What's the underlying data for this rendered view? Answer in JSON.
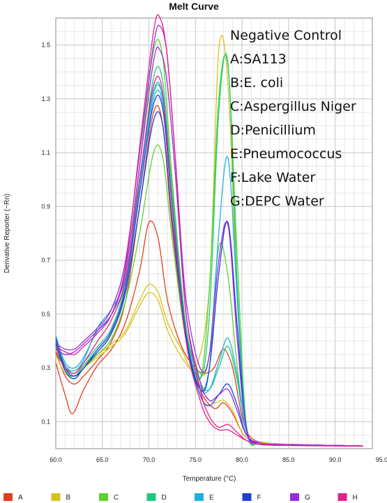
{
  "chart_data": {
    "type": "line",
    "title": "Melt Curve",
    "xlabel": "Temperature (°C)",
    "ylabel": "Derivative Reporter (−Rn)",
    "xlim": [
      60.0,
      94.0
    ],
    "ylim": [
      0.0,
      1.6
    ],
    "xticks": [
      "60.0",
      "65.0",
      "70.0",
      "75.0",
      "80.0",
      "85.0",
      "90.0",
      "95.0"
    ],
    "yticks": [
      "0.1",
      "0.3",
      "0.5",
      "0.7",
      "0.9",
      "1.1",
      "1.3",
      "1.5"
    ],
    "grid": true,
    "annotations": [
      "Negative Control",
      "A:SA113",
      "B:E. coli",
      "C:Aspergillus Niger",
      "D:Penicillium",
      "E:Pneumococcus",
      "F:Lake Water",
      "G:DEPC Water"
    ],
    "legend_position": "bottom",
    "series": [
      {
        "name": "A",
        "color": "#e0401c",
        "curves": [
          {
            "x": [
              60,
              61,
              61.8,
              63,
              64.5,
              66,
              67.5,
              69,
              70,
              71,
              72,
              73.5,
              75,
              76,
              77,
              78,
              79,
              80,
              81,
              83,
              86,
              90,
              93
            ],
            "y": [
              0.32,
              0.2,
              0.13,
              0.22,
              0.31,
              0.37,
              0.47,
              0.66,
              0.84,
              0.78,
              0.55,
              0.38,
              0.3,
              0.28,
              0.3,
              0.37,
              0.3,
              0.12,
              0.04,
              0.02,
              0.015,
              0.012,
              0.01
            ]
          },
          {
            "x": [
              60,
              61,
              62,
              63,
              64.5,
              66,
              67.5,
              69,
              70.5,
              71.5,
              72.5,
              74,
              75.5,
              77,
              78,
              79,
              80,
              81,
              83,
              86,
              90,
              93
            ],
            "y": [
              0.36,
              0.27,
              0.24,
              0.27,
              0.33,
              0.4,
              0.55,
              0.9,
              1.25,
              1.2,
              0.82,
              0.42,
              0.22,
              0.15,
              0.17,
              0.13,
              0.06,
              0.03,
              0.02,
              0.015,
              0.012,
              0.01
            ]
          }
        ]
      },
      {
        "name": "B",
        "color": "#d8c21a",
        "curves": [
          {
            "x": [
              60,
              61,
              62,
              63,
              64.5,
              66,
              67.5,
              69,
              70,
              71,
              72,
              73.5,
              75,
              76.5,
              77.5,
              78.5,
              79.5,
              80.5,
              82,
              85,
              90,
              93
            ],
            "y": [
              0.37,
              0.3,
              0.28,
              0.31,
              0.35,
              0.39,
              0.44,
              0.55,
              0.61,
              0.58,
              0.47,
              0.37,
              0.3,
              0.6,
              1.48,
              1.35,
              0.55,
              0.08,
              0.02,
              0.015,
              0.012,
              0.01
            ]
          },
          {
            "x": [
              60,
              61,
              62,
              63,
              64.5,
              66,
              67.5,
              69,
              70,
              71,
              72,
              73.5,
              75,
              76,
              77,
              78,
              79,
              80,
              81,
              83,
              86,
              90,
              93
            ],
            "y": [
              0.35,
              0.28,
              0.27,
              0.3,
              0.34,
              0.38,
              0.43,
              0.53,
              0.58,
              0.55,
              0.44,
              0.34,
              0.27,
              0.2,
              0.17,
              0.18,
              0.14,
              0.06,
              0.03,
              0.02,
              0.015,
              0.012,
              0.01
            ]
          }
        ]
      },
      {
        "name": "C",
        "color": "#5ad42a",
        "curves": [
          {
            "x": [
              60,
              61,
              62,
              63,
              64.5,
              66,
              67.5,
              69,
              70.5,
              71.5,
              72.5,
              74,
              75.5,
              76.5,
              77.5,
              78.5,
              79.5,
              80.5,
              82,
              85,
              90,
              93
            ],
            "y": [
              0.4,
              0.3,
              0.27,
              0.3,
              0.36,
              0.43,
              0.6,
              1.05,
              1.48,
              1.45,
              1.0,
              0.45,
              0.28,
              0.35,
              0.75,
              0.64,
              0.3,
              0.06,
              0.02,
              0.015,
              0.012,
              0.01
            ]
          },
          {
            "x": [
              60,
              61,
              62,
              63,
              64.5,
              66,
              67.5,
              69,
              70.5,
              71.5,
              72.5,
              74,
              75.5,
              76.5,
              77.5,
              78.5,
              79.5,
              80.5,
              82,
              85,
              90,
              93
            ],
            "y": [
              0.38,
              0.29,
              0.26,
              0.3,
              0.35,
              0.41,
              0.55,
              0.8,
              1.1,
              1.08,
              0.78,
              0.4,
              0.26,
              0.6,
              1.3,
              1.42,
              0.7,
              0.08,
              0.02,
              0.015,
              0.012,
              0.01
            ]
          }
        ]
      },
      {
        "name": "D",
        "color": "#1ec880",
        "curves": [
          {
            "x": [
              60,
              61,
              62,
              63,
              64.5,
              66,
              67.5,
              69,
              70.5,
              71.5,
              72.5,
              74,
              75.5,
              76.5,
              77.5,
              78.5,
              79.5,
              80.5,
              82,
              85,
              90,
              93
            ],
            "y": [
              0.4,
              0.31,
              0.28,
              0.32,
              0.38,
              0.45,
              0.62,
              1.0,
              1.32,
              1.3,
              0.95,
              0.45,
              0.25,
              0.22,
              0.3,
              0.38,
              0.25,
              0.06,
              0.02,
              0.015,
              0.012,
              0.01
            ]
          },
          {
            "x": [
              60,
              61,
              62,
              63,
              64.5,
              66,
              67.5,
              69,
              70.5,
              71.5,
              72.5,
              74,
              75.5,
              76.5,
              77.5,
              78.5,
              79.5,
              80.5,
              82,
              85,
              90,
              93
            ],
            "y": [
              0.39,
              0.29,
              0.27,
              0.31,
              0.37,
              0.44,
              0.6,
              0.98,
              1.38,
              1.36,
              0.96,
              0.44,
              0.26,
              0.5,
              1.25,
              1.43,
              0.6,
              0.08,
              0.02,
              0.015,
              0.012,
              0.01
            ]
          }
        ]
      },
      {
        "name": "E",
        "color": "#1eb0e0",
        "curves": [
          {
            "x": [
              60,
              61,
              62,
              63,
              64.5,
              66,
              67.5,
              69,
              70.5,
              71.5,
              72.5,
              74,
              75.5,
              76.5,
              77.5,
              78.5,
              79.5,
              80.5,
              82,
              85,
              90,
              93
            ],
            "y": [
              0.42,
              0.32,
              0.3,
              0.34,
              0.44,
              0.5,
              0.63,
              1.0,
              1.33,
              1.3,
              0.9,
              0.42,
              0.22,
              0.3,
              0.8,
              1.08,
              0.55,
              0.07,
              0.02,
              0.015,
              0.012,
              0.01
            ]
          },
          {
            "x": [
              60,
              61,
              62,
              63,
              64.5,
              66,
              67.5,
              69,
              70.5,
              71.5,
              72.5,
              74,
              75.5,
              76.5,
              77.5,
              78.5,
              79.5,
              80.5,
              82,
              85,
              90,
              93
            ],
            "y": [
              0.4,
              0.31,
              0.29,
              0.33,
              0.45,
              0.52,
              0.64,
              0.98,
              1.3,
              1.28,
              0.92,
              0.43,
              0.23,
              0.22,
              0.32,
              0.41,
              0.27,
              0.06,
              0.02,
              0.015,
              0.012,
              0.01
            ]
          }
        ]
      },
      {
        "name": "F",
        "color": "#2040d8",
        "curves": [
          {
            "x": [
              60,
              61,
              62,
              63,
              64.5,
              66,
              67.5,
              69,
              70.5,
              71.5,
              72.5,
              74,
              75.5,
              76.5,
              77.5,
              78.5,
              79.5,
              80.5,
              82,
              85,
              90,
              93
            ],
            "y": [
              0.41,
              0.3,
              0.27,
              0.3,
              0.37,
              0.44,
              0.6,
              0.95,
              1.28,
              1.26,
              0.9,
              0.42,
              0.22,
              0.3,
              0.65,
              0.84,
              0.45,
              0.07,
              0.02,
              0.015,
              0.012,
              0.01
            ]
          },
          {
            "x": [
              60,
              61,
              62,
              63,
              64.5,
              66,
              67.5,
              69,
              70.5,
              71.5,
              72.5,
              74,
              75.5,
              76.5,
              77.5,
              78.5,
              79.5,
              80.5,
              82,
              85,
              90,
              93
            ],
            "y": [
              0.39,
              0.29,
              0.26,
              0.3,
              0.36,
              0.43,
              0.58,
              0.9,
              1.22,
              1.2,
              0.85,
              0.4,
              0.2,
              0.16,
              0.2,
              0.24,
              0.16,
              0.05,
              0.02,
              0.015,
              0.012,
              0.01
            ]
          }
        ]
      },
      {
        "name": "G",
        "color": "#9a2ae0",
        "curves": [
          {
            "x": [
              60,
              61,
              62,
              63,
              64.5,
              66,
              67.5,
              69,
              70.5,
              71.2,
              72,
              73,
              74,
              75.5,
              76.5,
              77.5,
              78.5,
              79.5,
              80.5,
              82,
              85,
              90,
              93
            ],
            "y": [
              0.39,
              0.37,
              0.37,
              0.4,
              0.45,
              0.52,
              0.7,
              1.1,
              1.5,
              1.57,
              1.45,
              1.0,
              0.55,
              0.3,
              0.35,
              0.7,
              0.83,
              0.4,
              0.07,
              0.02,
              0.015,
              0.012,
              0.01
            ]
          },
          {
            "x": [
              60,
              61,
              62,
              63,
              64.5,
              66,
              67.5,
              69,
              70.5,
              71.2,
              72,
              73,
              74,
              75.5,
              76.5,
              77.5,
              78.5,
              79.5,
              80.5,
              82,
              85,
              90,
              93
            ],
            "y": [
              0.37,
              0.35,
              0.36,
              0.39,
              0.44,
              0.5,
              0.66,
              1.05,
              1.44,
              1.48,
              1.35,
              0.95,
              0.5,
              0.25,
              0.18,
              0.2,
              0.22,
              0.14,
              0.05,
              0.02,
              0.015,
              0.012,
              0.01
            ]
          }
        ]
      },
      {
        "name": "H",
        "color": "#e0208c",
        "curves": [
          {
            "x": [
              60,
              61,
              62,
              63,
              64.5,
              66,
              67.5,
              69,
              70.5,
              71.2,
              72,
              73,
              74,
              75.5,
              76.5,
              77.5,
              78.5,
              79.5,
              80.5,
              82,
              85,
              90,
              93
            ],
            "y": [
              0.38,
              0.36,
              0.35,
              0.38,
              0.43,
              0.5,
              0.68,
              1.12,
              1.55,
              1.6,
              1.45,
              1.0,
              0.5,
              0.22,
              0.12,
              0.08,
              0.09,
              0.06,
              0.03,
              0.015,
              0.012,
              0.01,
              0.01
            ]
          },
          {
            "x": [
              60,
              61,
              62,
              63,
              64.5,
              66,
              67.5,
              69,
              70.5,
              71.5,
              72.5,
              74,
              75.5,
              76.5,
              77.5,
              78.5,
              79.5,
              80.5,
              82,
              85,
              90,
              93
            ],
            "y": [
              0.36,
              0.3,
              0.28,
              0.32,
              0.4,
              0.48,
              0.63,
              1.0,
              1.35,
              1.32,
              0.9,
              0.4,
              0.18,
              0.1,
              0.07,
              0.07,
              0.05,
              0.03,
              0.015,
              0.012,
              0.01,
              0.01
            ]
          }
        ]
      }
    ]
  }
}
